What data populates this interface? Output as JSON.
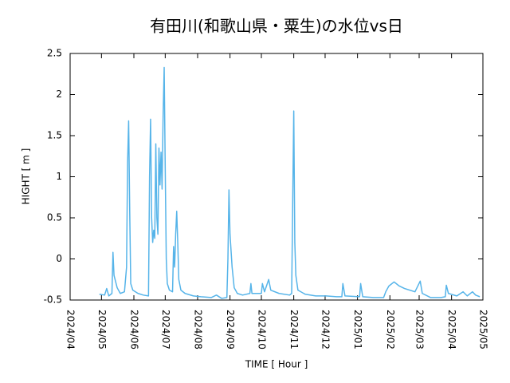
{
  "chart_data": {
    "type": "line",
    "title": "有田川(和歌山県・粟生)の水位vs日",
    "x_label": "TIME [ Hour ]",
    "y_label": "HIGHT [ m ]",
    "xlim": [
      "2024-04-01",
      "2025-05-01"
    ],
    "xticks": [
      {
        "value": "2024-04-01",
        "label": "2024/04"
      },
      {
        "value": "2024-05-01",
        "label": "2024/05"
      },
      {
        "value": "2024-06-01",
        "label": "2024/06"
      },
      {
        "value": "2024-07-01",
        "label": "2024/07"
      },
      {
        "value": "2024-08-01",
        "label": "2024/08"
      },
      {
        "value": "2024-09-01",
        "label": "2024/09"
      },
      {
        "value": "2024-10-01",
        "label": "2024/10"
      },
      {
        "value": "2024-11-01",
        "label": "2024/11"
      },
      {
        "value": "2024-12-01",
        "label": "2024/12"
      },
      {
        "value": "2025-01-01",
        "label": "2025/01"
      },
      {
        "value": "2025-02-01",
        "label": "2025/02"
      },
      {
        "value": "2025-03-01",
        "label": "2025/03"
      },
      {
        "value": "2025-04-01",
        "label": "2025/04"
      },
      {
        "value": "2025-05-01",
        "label": "2025/05"
      }
    ],
    "ylim": [
      -0.5,
      2.5
    ],
    "yticks": [
      -0.5,
      0,
      0.5,
      1,
      1.5,
      2,
      2.5
    ],
    "series": [
      {
        "color": "#56b4e9",
        "x": [
          "2024-04-29",
          "2024-05-04",
          "2024-05-06",
          "2024-05-08",
          "2024-05-11",
          "2024-05-12",
          "2024-05-13",
          "2024-05-16",
          "2024-05-19",
          "2024-05-23",
          "2024-05-25",
          "2024-05-26",
          "2024-05-27",
          "2024-05-28",
          "2024-05-29",
          "2024-05-31",
          "2024-06-05",
          "2024-06-10",
          "2024-06-15",
          "2024-06-16",
          "2024-06-17",
          "2024-06-18",
          "2024-06-19",
          "2024-06-20",
          "2024-06-21",
          "2024-06-22",
          "2024-06-23",
          "2024-06-24",
          "2024-06-25",
          "2024-06-26",
          "2024-06-27",
          "2024-06-28",
          "2024-06-29",
          "2024-06-30",
          "2024-07-01",
          "2024-07-02",
          "2024-07-03",
          "2024-07-05",
          "2024-07-08",
          "2024-07-09",
          "2024-07-10",
          "2024-07-11",
          "2024-07-12",
          "2024-07-13",
          "2024-07-14",
          "2024-07-16",
          "2024-07-20",
          "2024-07-28",
          "2024-08-04",
          "2024-08-14",
          "2024-08-19",
          "2024-08-24",
          "2024-08-29",
          "2024-08-30",
          "2024-08-31",
          "2024-09-01",
          "2024-09-03",
          "2024-09-05",
          "2024-09-08",
          "2024-09-13",
          "2024-09-20",
          "2024-09-21",
          "2024-09-22",
          "2024-10-01",
          "2024-10-02",
          "2024-10-04",
          "2024-10-08",
          "2024-10-10",
          "2024-10-18",
          "2024-10-28",
          "2024-10-30",
          "2024-10-31",
          "2024-11-01",
          "2024-11-02",
          "2024-11-03",
          "2024-11-05",
          "2024-11-12",
          "2024-11-22",
          "2024-12-02",
          "2024-12-12",
          "2024-12-17",
          "2024-12-18",
          "2024-12-20",
          "2025-01-03",
          "2025-01-04",
          "2025-01-06",
          "2025-01-16",
          "2025-01-26",
          "2025-01-28",
          "2025-01-31",
          "2025-02-05",
          "2025-02-10",
          "2025-02-15",
          "2025-02-25",
          "2025-03-02",
          "2025-03-04",
          "2025-03-12",
          "2025-03-22",
          "2025-03-26",
          "2025-03-27",
          "2025-03-29",
          "2025-04-06",
          "2025-04-12",
          "2025-04-16",
          "2025-04-21",
          "2025-04-24",
          "2025-04-28"
        ],
        "values": [
          -0.43,
          -0.44,
          -0.36,
          -0.45,
          -0.42,
          0.08,
          -0.2,
          -0.35,
          -0.42,
          -0.4,
          -0.1,
          1.18,
          1.68,
          0.6,
          -0.3,
          -0.38,
          -0.42,
          -0.44,
          -0.45,
          1.0,
          1.7,
          0.5,
          0.2,
          0.35,
          0.25,
          1.4,
          0.5,
          0.3,
          1.35,
          0.9,
          1.3,
          0.85,
          1.75,
          2.33,
          1.1,
          0.0,
          -0.3,
          -0.38,
          -0.4,
          0.15,
          -0.1,
          0.3,
          0.58,
          0.2,
          -0.25,
          -0.38,
          -0.42,
          -0.45,
          -0.46,
          -0.47,
          -0.44,
          -0.48,
          -0.47,
          0.0,
          0.84,
          0.3,
          -0.1,
          -0.35,
          -0.42,
          -0.44,
          -0.42,
          -0.3,
          -0.42,
          -0.42,
          -0.3,
          -0.4,
          -0.25,
          -0.38,
          -0.42,
          -0.44,
          -0.42,
          0.7,
          1.8,
          0.2,
          -0.2,
          -0.38,
          -0.43,
          -0.45,
          -0.45,
          -0.46,
          -0.46,
          -0.3,
          -0.45,
          -0.46,
          -0.3,
          -0.46,
          -0.47,
          -0.47,
          -0.4,
          -0.33,
          -0.28,
          -0.33,
          -0.36,
          -0.4,
          -0.27,
          -0.42,
          -0.47,
          -0.47,
          -0.46,
          -0.32,
          -0.42,
          -0.45,
          -0.4,
          -0.45,
          -0.4,
          -0.44,
          -0.46
        ]
      }
    ]
  }
}
